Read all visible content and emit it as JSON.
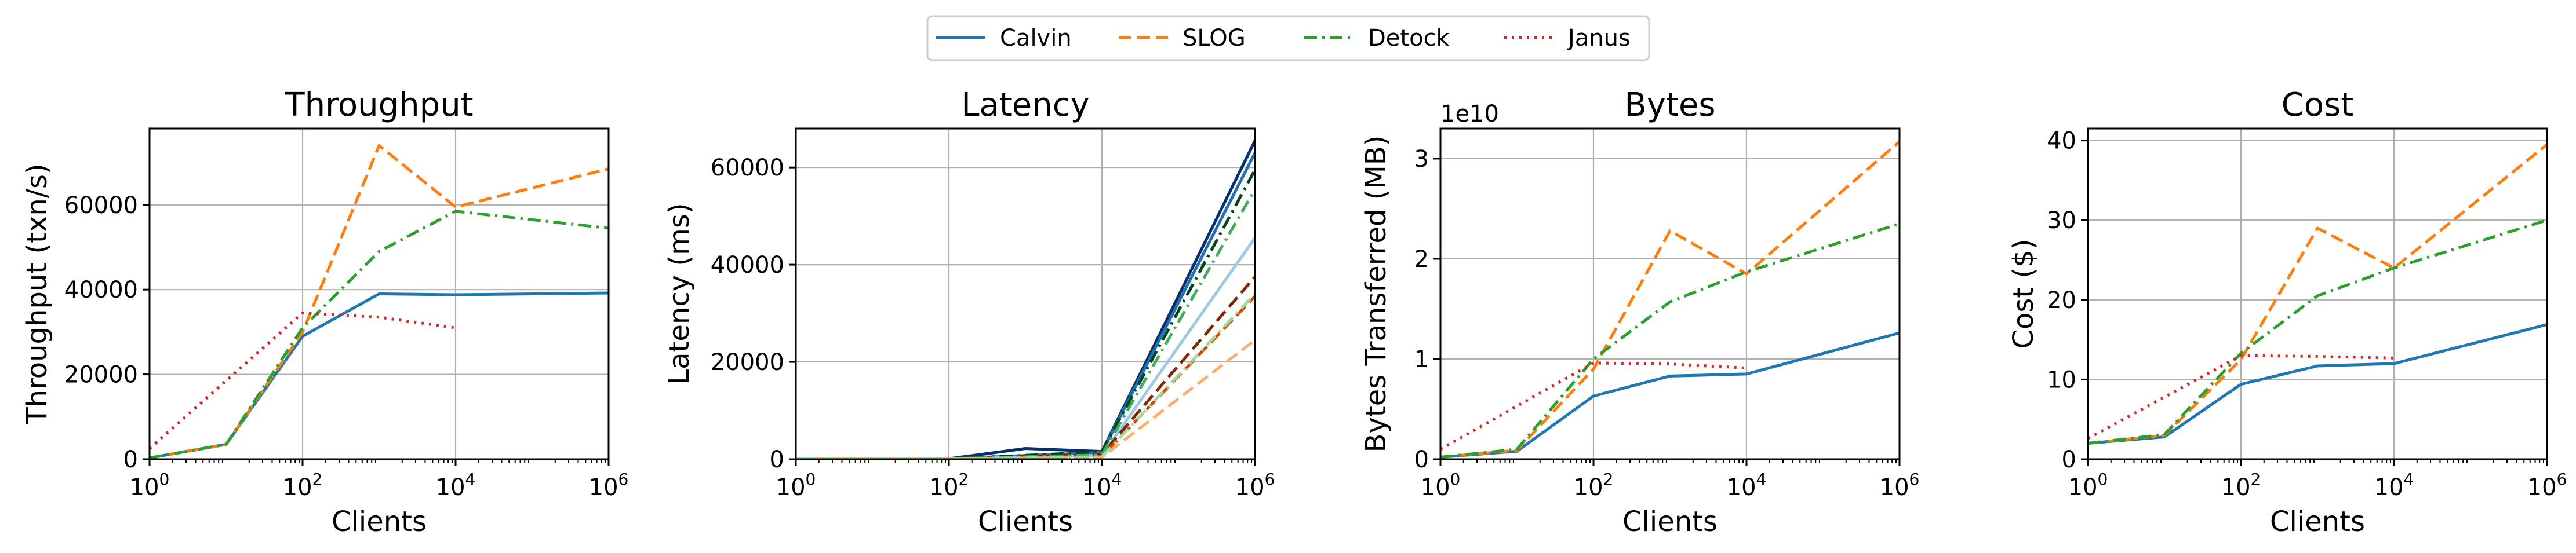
{
  "legend": {
    "placement": "top-center",
    "entries": [
      {
        "name": "Calvin",
        "color": "#1f77b4",
        "dash": "solid"
      },
      {
        "name": "SLOG",
        "color": "#ff7f0e",
        "dash": "dashed"
      },
      {
        "name": "Detock",
        "color": "#2ca02c",
        "dash": "dashdot"
      },
      {
        "name": "Janus",
        "color": "#d62728",
        "dash": "dotted"
      }
    ]
  },
  "chart_data": [
    {
      "type": "line",
      "title": "Throughput",
      "xlabel": "Clients",
      "ylabel": "Throughput (txn/s)",
      "xscale": "log",
      "xlim": [
        1,
        1000000
      ],
      "ylim": [
        0,
        78000
      ],
      "xticks": [
        1,
        100,
        10000,
        1000000
      ],
      "yticks": [
        0,
        20000,
        40000,
        60000
      ],
      "grid": true,
      "series": [
        {
          "name": "Calvin",
          "x": [
            1,
            10,
            100,
            1000,
            10000,
            1000000
          ],
          "y": [
            300,
            3500,
            29000,
            39000,
            38800,
            39200
          ]
        },
        {
          "name": "SLOG",
          "x": [
            1,
            10,
            100,
            1000,
            10000,
            1000000
          ],
          "y": [
            300,
            3500,
            30000,
            74000,
            59500,
            68500
          ]
        },
        {
          "name": "Detock",
          "x": [
            1,
            10,
            100,
            1000,
            10000,
            1000000
          ],
          "y": [
            300,
            3500,
            31000,
            49000,
            58500,
            54500
          ]
        },
        {
          "name": "Janus",
          "x": [
            1,
            100,
            1000,
            10000
          ],
          "y": [
            2500,
            34500,
            33500,
            31000
          ]
        }
      ]
    },
    {
      "type": "line",
      "title": "Latency",
      "xlabel": "Clients",
      "ylabel": "Latency (ms)",
      "xscale": "log",
      "xlim": [
        1,
        1000000
      ],
      "ylim": [
        0,
        68000
      ],
      "xticks": [
        1,
        100,
        10000,
        1000000
      ],
      "yticks": [
        0,
        20000,
        40000,
        60000
      ],
      "grid": true,
      "series": [
        {
          "color": "#08306b",
          "dash": "solid",
          "x": [
            1,
            100,
            1000,
            10000,
            1000000
          ],
          "y": [
            100,
            100,
            2200,
            1600,
            65500
          ]
        },
        {
          "color": "#2171b5",
          "dash": "solid",
          "x": [
            1,
            100,
            10000,
            1000000
          ],
          "y": [
            100,
            100,
            1400,
            63000
          ]
        },
        {
          "color": "#9ecae1",
          "dash": "solid",
          "x": [
            1,
            100,
            10000,
            1000000
          ],
          "y": [
            100,
            100,
            800,
            45500
          ]
        },
        {
          "color": "#7f2704",
          "dash": "dashed",
          "x": [
            1,
            100,
            10000,
            1000000
          ],
          "y": [
            100,
            100,
            1000,
            37500
          ]
        },
        {
          "color": "#d94801",
          "dash": "dashed",
          "x": [
            1,
            100,
            10000,
            1000000
          ],
          "y": [
            100,
            100,
            600,
            33500
          ]
        },
        {
          "color": "#fdae6b",
          "dash": "dashed",
          "x": [
            1,
            100,
            10000,
            1000000
          ],
          "y": [
            100,
            100,
            400,
            24500
          ]
        },
        {
          "color": "#00441b",
          "dash": "dashdot",
          "x": [
            1,
            100,
            10000,
            1000000
          ],
          "y": [
            100,
            100,
            1500,
            59500
          ]
        },
        {
          "color": "#41ab5d",
          "dash": "dashdot",
          "x": [
            1,
            100,
            10000,
            1000000
          ],
          "y": [
            100,
            100,
            900,
            55500
          ]
        },
        {
          "color": "#a1d99b",
          "dash": "dashdot",
          "x": [
            1,
            100,
            10000,
            1000000
          ],
          "y": [
            100,
            100,
            500,
            34000
          ]
        }
      ]
    },
    {
      "type": "line",
      "title": "Bytes",
      "xlabel": "Clients",
      "ylabel": "Bytes Transferred (MB)",
      "axis_offset_label": "1e10",
      "xscale": "log",
      "xlim": [
        1,
        1000000
      ],
      "ylim": [
        0,
        3.3
      ],
      "xticks": [
        1,
        100,
        10000,
        1000000
      ],
      "yticks": [
        0,
        1,
        2,
        3
      ],
      "grid": true,
      "series": [
        {
          "name": "Calvin",
          "x": [
            1,
            10,
            100,
            1000,
            10000,
            1000000
          ],
          "y": [
            0.02,
            0.08,
            0.63,
            0.83,
            0.85,
            1.26
          ]
        },
        {
          "name": "SLOG",
          "x": [
            1,
            10,
            100,
            1000,
            10000,
            1000000
          ],
          "y": [
            0.02,
            0.09,
            0.9,
            2.28,
            1.85,
            3.17
          ]
        },
        {
          "name": "Detock",
          "x": [
            1,
            10,
            100,
            1000,
            10000,
            1000000
          ],
          "y": [
            0.02,
            0.1,
            1.0,
            1.57,
            1.87,
            2.35
          ]
        },
        {
          "name": "Janus",
          "x": [
            1,
            100,
            1000,
            10000
          ],
          "y": [
            0.1,
            0.96,
            0.95,
            0.91
          ]
        }
      ]
    },
    {
      "type": "line",
      "title": "Cost",
      "xlabel": "Clients",
      "ylabel": "Cost ($)",
      "xscale": "log",
      "xlim": [
        1,
        1000000
      ],
      "ylim": [
        0,
        41.5
      ],
      "xticks": [
        1,
        100,
        10000,
        1000000
      ],
      "yticks": [
        0,
        10,
        20,
        30,
        40
      ],
      "grid": true,
      "series": [
        {
          "name": "Calvin",
          "x": [
            1,
            10,
            100,
            1000,
            10000,
            1000000
          ],
          "y": [
            2.0,
            2.8,
            9.4,
            11.7,
            12.0,
            16.9
          ]
        },
        {
          "name": "SLOG",
          "x": [
            1,
            10,
            100,
            1000,
            10000,
            1000000
          ],
          "y": [
            2.0,
            3.0,
            12.5,
            29.0,
            24.0,
            39.5
          ]
        },
        {
          "name": "Detock",
          "x": [
            1,
            10,
            100,
            1000,
            10000,
            1000000
          ],
          "y": [
            2.0,
            3.1,
            13.3,
            20.5,
            24.0,
            30.0
          ]
        },
        {
          "name": "Janus",
          "x": [
            1,
            100,
            1000,
            10000
          ],
          "y": [
            2.6,
            13.0,
            12.9,
            12.7
          ]
        }
      ]
    }
  ]
}
